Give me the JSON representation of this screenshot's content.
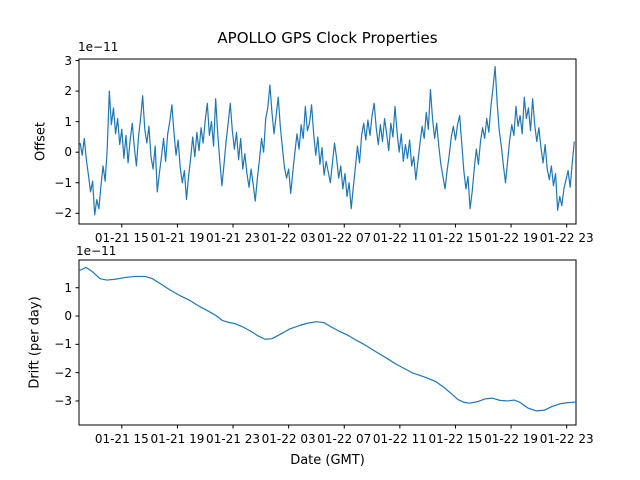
{
  "figure": {
    "title": "APOLLO GPS Clock Properties",
    "background": "#ffffff",
    "line_color": "#1f77b4",
    "axis_color": "#000000"
  },
  "chart_data": [
    {
      "type": "line",
      "title": "APOLLO GPS Clock Properties",
      "ylabel": "Offset",
      "offset_text": "1e−11",
      "x_units": "hours since 01-21 00:00 GMT",
      "xlim": [
        11.92,
        47.67
      ],
      "ylim": [
        -2.35,
        3.05
      ],
      "grid": false,
      "legend": "none",
      "x_tick_hours": [
        15,
        19,
        23,
        27,
        31,
        35,
        39,
        43,
        47
      ],
      "x_tick_labels": [
        "01-21 15",
        "01-21 19",
        "01-21 23",
        "01-22 03",
        "01-22 07",
        "01-22 11",
        "01-22 15",
        "01-22 19",
        "01-22 23"
      ],
      "y_tick_values": [
        3,
        2,
        1,
        0,
        -1,
        -2
      ],
      "y_tick_labels": [
        "3",
        "2",
        "1",
        "0",
        "−1",
        "−2"
      ],
      "series": [
        {
          "name": "offset",
          "x_start": 12.0,
          "x_step": 0.15,
          "values": [
            0.3,
            -0.1,
            0.45,
            -0.25,
            -0.75,
            -1.3,
            -0.95,
            -2.05,
            -1.55,
            -1.85,
            -1.1,
            -0.45,
            -0.95,
            0.1,
            2.0,
            0.9,
            1.45,
            0.6,
            1.1,
            0.25,
            0.75,
            -0.2,
            0.55,
            -0.35,
            0.4,
            0.95,
            0.15,
            -0.45,
            0.5,
            1.1,
            1.85,
            0.75,
            0.3,
            0.85,
            -0.15,
            -0.55,
            0.2,
            -1.3,
            -0.7,
            -0.15,
            0.45,
            -0.3,
            0.6,
            1.0,
            1.55,
            0.65,
            -0.1,
            0.4,
            -0.5,
            -1.0,
            -0.6,
            -1.55,
            -0.8,
            -0.2,
            0.5,
            -0.15,
            0.65,
            0.05,
            0.8,
            0.3,
            1.05,
            1.6,
            0.55,
            1.0,
            0.2,
            1.75,
            0.6,
            -0.3,
            -1.1,
            -0.4,
            0.35,
            0.95,
            1.6,
            0.7,
            0.1,
            0.65,
            -0.25,
            0.45,
            -0.55,
            -0.05,
            -0.7,
            -1.15,
            -0.55,
            -1.05,
            -1.6,
            -0.85,
            -0.25,
            0.45,
            0.0,
            1.1,
            1.45,
            2.2,
            1.3,
            0.6,
            1.2,
            1.8,
            0.85,
            0.15,
            -0.5,
            -0.85,
            -0.55,
            -1.35,
            -0.65,
            0.0,
            0.6,
            0.1,
            0.9,
            0.45,
            1.5,
            0.7,
            0.95,
            1.55,
            0.6,
            -0.1,
            0.5,
            -0.4,
            0.15,
            -0.75,
            -0.3,
            -0.65,
            -1.0,
            -0.35,
            0.3,
            -0.2,
            -0.85,
            -0.45,
            -1.2,
            -0.7,
            -1.45,
            -1.0,
            -1.85,
            -1.15,
            -0.5,
            0.2,
            -0.35,
            0.55,
            0.95,
            0.4,
            1.05,
            0.55,
            1.2,
            1.6,
            0.8,
            0.25,
            0.9,
            0.35,
            1.1,
            0.6,
            0.05,
            0.95,
            0.5,
            1.5,
            0.65,
            0.0,
            0.6,
            -0.3,
            0.25,
            -0.2,
            0.4,
            -0.45,
            -0.15,
            -0.9,
            -0.3,
            0.3,
            0.85,
            0.45,
            1.3,
            0.75,
            2.05,
            1.1,
            0.45,
            0.95,
            0.2,
            -0.4,
            -0.8,
            -1.2,
            -0.6,
            -0.1,
            0.5,
            0.85,
            0.4,
            0.9,
            1.2,
            0.3,
            -0.6,
            -1.2,
            -0.8,
            -1.85,
            -1.3,
            -0.55,
            0.1,
            -0.4,
            0.35,
            0.8,
            0.45,
            1.1,
            0.65,
            1.5,
            2.1,
            2.8,
            1.6,
            0.7,
            0.2,
            -0.45,
            -1.0,
            -0.3,
            0.4,
            0.9,
            0.55,
            1.5,
            0.85,
            1.2,
            0.6,
            1.8,
            1.1,
            1.45,
            0.7,
            1.75,
            0.9,
            0.35,
            0.8,
            0.15,
            -0.35,
            0.25,
            -0.55,
            -0.9,
            -0.45,
            -1.1,
            -0.7,
            -1.9,
            -1.45,
            -1.75,
            -1.2,
            -0.9,
            -0.6,
            -1.15,
            -0.35,
            0.35
          ]
        }
      ]
    },
    {
      "type": "line",
      "ylabel": "Drift (per day)",
      "xlabel": "Date (GMT)",
      "offset_text": "1e−11",
      "x_units": "hours since 01-21 00:00 GMT",
      "xlim": [
        11.92,
        47.67
      ],
      "ylim": [
        -3.85,
        1.98
      ],
      "grid": false,
      "legend": "none",
      "x_tick_hours": [
        15,
        19,
        23,
        27,
        31,
        35,
        39,
        43,
        47
      ],
      "x_tick_labels": [
        "01-21 15",
        "01-21 19",
        "01-21 23",
        "01-22 03",
        "01-22 07",
        "01-22 11",
        "01-22 15",
        "01-22 19",
        "01-22 23"
      ],
      "y_tick_values": [
        1,
        0,
        -1,
        -2,
        -3
      ],
      "y_tick_labels": [
        "1",
        "0",
        "−1",
        "−2",
        "−3"
      ],
      "series": [
        {
          "name": "drift",
          "x": [
            11.92,
            12.42,
            12.93,
            13.43,
            13.93,
            14.51,
            15.23,
            15.95,
            16.67,
            17.17,
            17.75,
            18.47,
            19.19,
            19.9,
            20.62,
            21.34,
            21.77,
            22.21,
            22.64,
            23.14,
            23.64,
            24.22,
            24.79,
            25.3,
            25.8,
            26.38,
            27.1,
            27.81,
            28.39,
            28.97,
            29.54,
            30.12,
            30.69,
            31.27,
            31.84,
            32.42,
            33.0,
            33.57,
            34.15,
            34.72,
            35.3,
            35.87,
            36.45,
            37.02,
            37.6,
            38.17,
            38.75,
            39.18,
            39.61,
            40.04,
            40.62,
            41.12,
            41.63,
            42.2,
            42.78,
            43.21,
            43.64,
            44.21,
            44.79,
            45.37,
            45.94,
            46.52,
            47.09,
            47.67
          ],
          "values": [
            1.6,
            1.72,
            1.55,
            1.32,
            1.27,
            1.3,
            1.36,
            1.4,
            1.4,
            1.33,
            1.15,
            0.92,
            0.72,
            0.55,
            0.33,
            0.14,
            0.02,
            -0.15,
            -0.22,
            -0.27,
            -0.37,
            -0.52,
            -0.7,
            -0.82,
            -0.8,
            -0.65,
            -0.45,
            -0.33,
            -0.25,
            -0.2,
            -0.23,
            -0.4,
            -0.55,
            -0.68,
            -0.85,
            -1.0,
            -1.18,
            -1.35,
            -1.52,
            -1.7,
            -1.85,
            -2.0,
            -2.1,
            -2.2,
            -2.32,
            -2.52,
            -2.76,
            -2.95,
            -3.05,
            -3.08,
            -3.02,
            -2.93,
            -2.9,
            -2.98,
            -3.0,
            -2.97,
            -3.05,
            -3.25,
            -3.35,
            -3.33,
            -3.2,
            -3.1,
            -3.06,
            -3.04
          ]
        }
      ]
    }
  ]
}
